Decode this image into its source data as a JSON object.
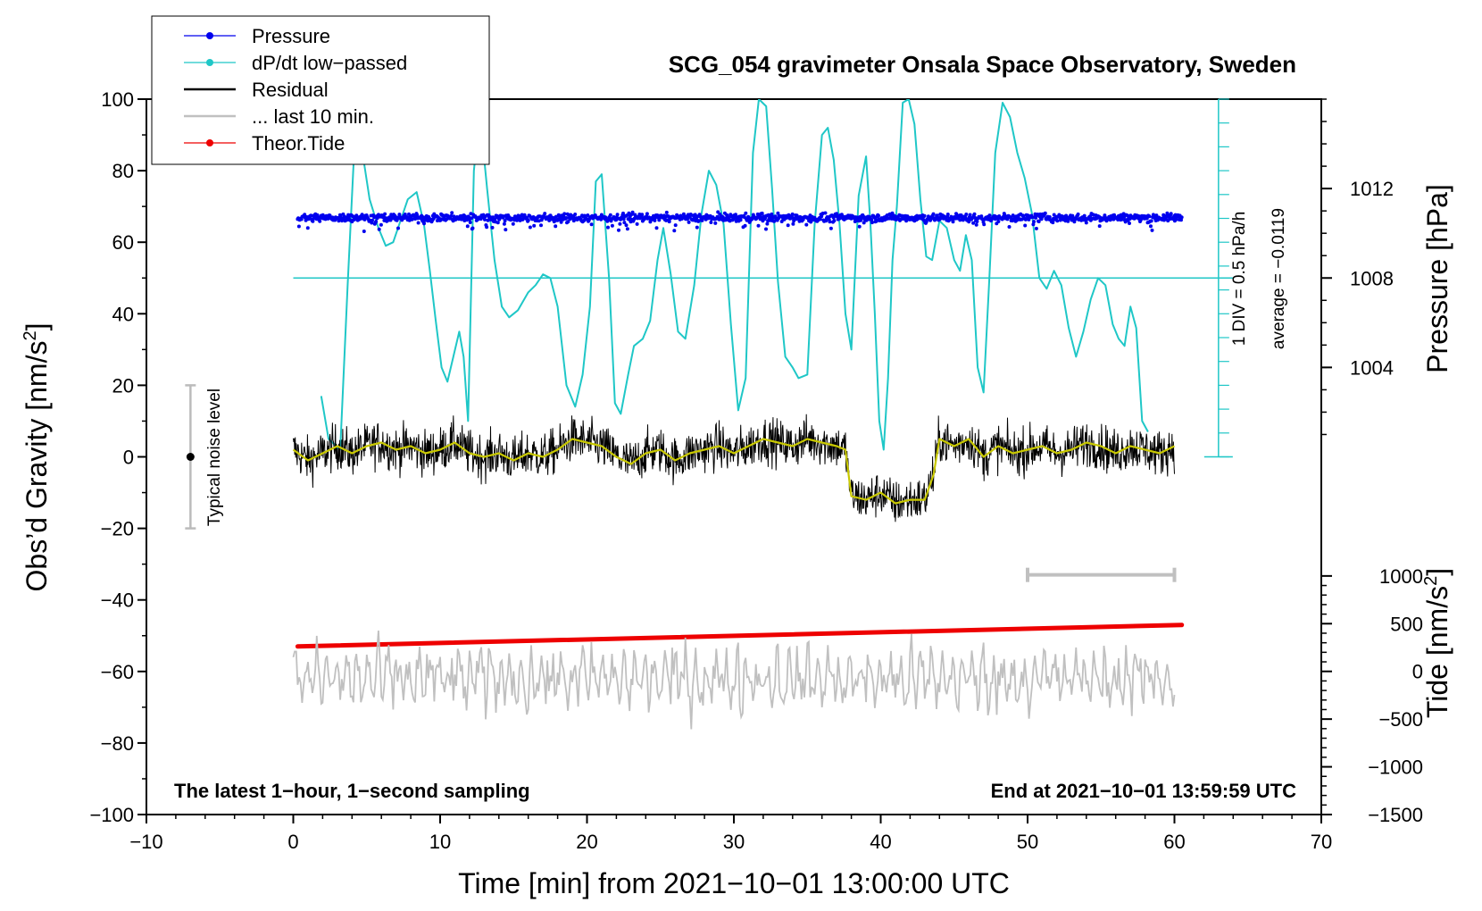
{
  "chart_data": {
    "type": "line",
    "title": "SCG_054 gravimeter Onsala Space Observatory, Sweden",
    "xlabel": "Time [min] from 2021−10−01 13:00:00 UTC",
    "ylabel_left_main": "Obs’d Gravity [nm/s",
    "ylabel_left_sup": "2",
    "ylabel_left_close": "]",
    "ylabel_right_pressure": "Pressure [hPa]",
    "ylabel_right_tide_main": "Tide [nm/s",
    "ylabel_right_tide_sup": "2",
    "ylabel_right_tide_close": "]",
    "xlim": [
      -10,
      70
    ],
    "ylim": [
      -100,
      100
    ],
    "x_ticks": [
      "−10",
      "0",
      "10",
      "20",
      "30",
      "40",
      "50",
      "60",
      "70"
    ],
    "x_tick_values": [
      -10,
      0,
      10,
      20,
      30,
      40,
      50,
      60,
      70
    ],
    "y_ticks": [
      "−100",
      "−80",
      "−60",
      "−40",
      "−20",
      "0",
      "20",
      "40",
      "60",
      "80",
      "100"
    ],
    "y_tick_values": [
      -100,
      -80,
      -60,
      -40,
      -20,
      0,
      20,
      40,
      60,
      80,
      100
    ],
    "pressure_axis": {
      "ticks": [
        "1004",
        "1008",
        "1012"
      ],
      "tick_values": [
        1004,
        1008,
        1012
      ],
      "range": [
        1000,
        1016
      ],
      "maps_to_gravity": [
        0,
        100
      ]
    },
    "tide_axis": {
      "ticks": [
        "−1500",
        "−1000",
        "−500",
        "0",
        "500",
        "1000"
      ],
      "tick_values": [
        -1500,
        -1000,
        -500,
        0,
        500,
        1000
      ],
      "range": [
        -1500,
        1000
      ],
      "maps_to_gravity": [
        -100,
        -33.3
      ]
    },
    "dpdt_scale": {
      "label": "1 DIV = 0.5 hPa/h",
      "average_label": "average = −0.0119",
      "zero_line_gravity": 50,
      "div_count": 15
    },
    "legend": [
      {
        "label": "Pressure",
        "color": "#0000ee",
        "marker": true
      },
      {
        "label": "dP/dt low−passed",
        "color": "#1fc7c7",
        "marker": true
      },
      {
        "label": "Residual",
        "color": "#000000",
        "marker": false
      },
      {
        "label": "... last 10 min.",
        "color": "#c0c0c0",
        "marker": false
      },
      {
        "label": "Theor.Tide",
        "color": "#ee0000",
        "marker": true
      }
    ],
    "noise_label": "Typical noise level",
    "noise_bar": {
      "x": -7,
      "center": 0,
      "low": -20,
      "high": 20
    },
    "last10_bar": {
      "x0": 50,
      "x1": 60,
      "y": -33
    },
    "annotation_left": "The latest 1−hour, 1−second sampling",
    "annotation_right": "End at 2021−10−01 13:59:59 UTC",
    "series": [
      {
        "name": "Pressure",
        "color": "#0000ee",
        "unit": "hPa",
        "approx_value": 1010.7,
        "x_range": [
          0.3,
          60.5
        ]
      },
      {
        "name": "dP/dt low-passed",
        "color": "#1fc7c7",
        "unit": "gravity-axis equivalent",
        "x": [
          1.9,
          2.4,
          3.2,
          3.7,
          4.2,
          4.6,
          5.2,
          5.8,
          6.3,
          6.8,
          7.3,
          7.8,
          8.4,
          8.9,
          9.3,
          9.7,
          10.1,
          10.5,
          10.9,
          11.3,
          11.6,
          11.9,
          12.3,
          12.7,
          13.2,
          13.7,
          14.2,
          14.7,
          15.3,
          16.0,
          16.5,
          17.0,
          17.5,
          18.0,
          18.6,
          19.2,
          19.7,
          20.2,
          20.6,
          21.0,
          21.5,
          21.9,
          22.3,
          22.8,
          23.2,
          23.8,
          24.3,
          24.8,
          25.2,
          25.7,
          26.2,
          26.7,
          27.3,
          27.8,
          28.3,
          28.8,
          29.3,
          29.8,
          30.3,
          30.8,
          31.3,
          31.7,
          32.2,
          32.6,
          33.0,
          33.5,
          34.0,
          34.4,
          35.0,
          35.5,
          36.0,
          36.4,
          36.8,
          37.2,
          37.6,
          38.0,
          38.5,
          39.0,
          39.3,
          39.6,
          39.9,
          40.2,
          40.5,
          40.8,
          41.1,
          41.5,
          41.9,
          42.3,
          42.7,
          43.1,
          43.5,
          44.0,
          44.5,
          45.0,
          45.4,
          45.8,
          46.2,
          46.6,
          47.0,
          47.4,
          47.8,
          48.3,
          48.8,
          49.3,
          49.8,
          50.3,
          50.8,
          51.3,
          51.8,
          52.3,
          52.8,
          53.3,
          53.8,
          54.3,
          54.8,
          55.3,
          55.8,
          56.2,
          56.6,
          57.0,
          57.4,
          57.8,
          58.2
        ],
        "y": [
          17,
          5,
          2,
          48,
          90,
          88,
          72,
          64,
          59,
          60,
          66,
          72,
          74,
          65,
          52,
          38,
          25,
          21,
          28,
          35,
          28,
          10,
          80,
          96,
          75,
          55,
          42,
          39,
          41,
          46,
          48,
          51,
          50,
          42,
          20,
          14,
          23,
          42,
          77,
          79,
          50,
          15,
          12,
          23,
          31,
          33,
          38,
          55,
          64,
          51,
          35,
          33,
          48,
          68,
          80,
          76,
          65,
          37,
          13,
          22,
          85,
          100,
          98,
          75,
          49,
          28,
          25,
          22,
          23,
          65,
          90,
          92,
          83,
          65,
          40,
          30,
          73,
          84,
          65,
          40,
          10,
          2,
          22,
          55,
          70,
          99,
          100,
          93,
          72,
          56,
          55,
          66,
          64,
          55,
          52,
          62,
          55,
          25,
          18,
          50,
          85,
          99,
          95,
          85,
          78,
          68,
          50,
          47,
          52,
          48,
          36,
          28,
          35,
          44,
          50,
          48,
          37,
          33,
          31,
          42,
          36,
          10,
          7
        ]
      },
      {
        "name": "Residual",
        "color": "#000000",
        "unit": "nm/s2",
        "x_range": [
          0,
          60
        ],
        "smoothed_color": "#c8c800",
        "smoothed_x": [
          0,
          1,
          2,
          3,
          4,
          5,
          6,
          7,
          8,
          9,
          10,
          11,
          12,
          13,
          14,
          15,
          16,
          17,
          18,
          19,
          20,
          21,
          22,
          23,
          24,
          25,
          26,
          27,
          28,
          29,
          30,
          31,
          32,
          33,
          34,
          35,
          36,
          37,
          37.6,
          38,
          39,
          40,
          41,
          42,
          43,
          43.6,
          44,
          45,
          46,
          47,
          48,
          49,
          50,
          51,
          52,
          53,
          54,
          55,
          56,
          57,
          58,
          59,
          60
        ],
        "smoothed_y": [
          2,
          -1,
          1,
          3,
          1,
          3,
          4,
          2,
          3,
          1,
          2,
          4,
          1,
          0,
          1,
          -1,
          1,
          0,
          2,
          5,
          4,
          3,
          0,
          -2,
          1,
          2,
          -1,
          1,
          2,
          3,
          1,
          3,
          5,
          4,
          3,
          5,
          4,
          3,
          2,
          -11,
          -12,
          -10,
          -13,
          -12,
          -12,
          -5,
          5,
          3,
          5,
          0,
          3,
          1,
          2,
          3,
          1,
          2,
          4,
          3,
          1,
          3,
          2,
          1,
          3
        ]
      },
      {
        "name": "... last 10 min.",
        "color": "#c0c0c0",
        "unit": "nm/s2",
        "x_range": [
          0,
          60
        ],
        "mean": -62
      },
      {
        "name": "Theor.Tide",
        "color": "#ee0000",
        "unit": "nm/s2",
        "x": [
          0.3,
          60.5
        ],
        "y": [
          -53,
          -47
        ]
      }
    ]
  }
}
